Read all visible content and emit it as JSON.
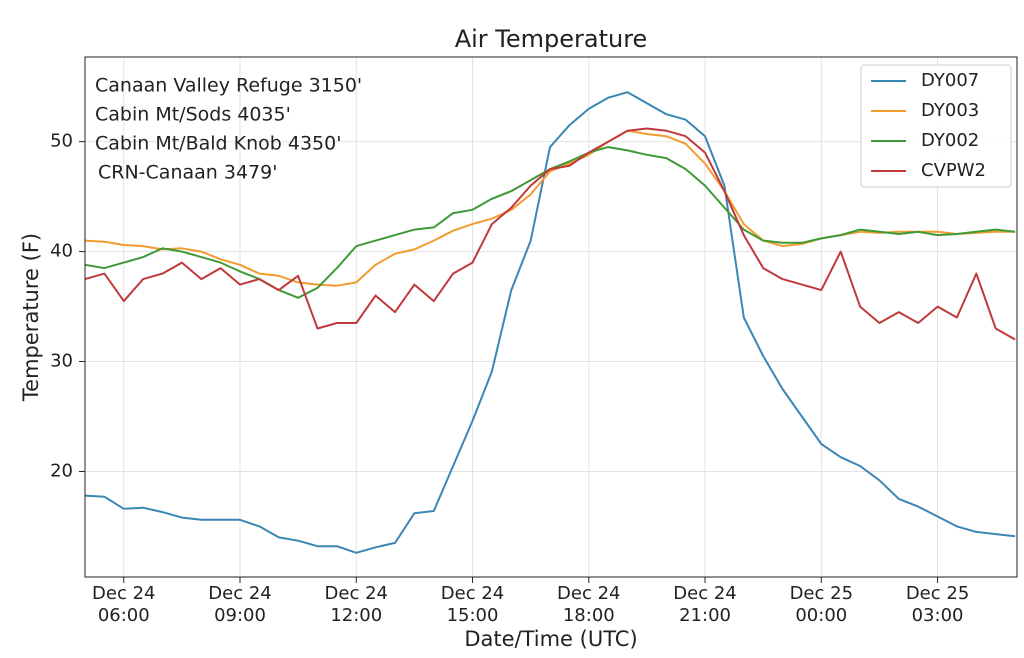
{
  "chart_data": {
    "type": "line",
    "title": "Air Temperature",
    "xlabel": "Date/Time (UTC)",
    "ylabel": "Temperature (F)",
    "annotations": [
      {
        "text": "Canaan Valley Refuge 3150'",
        "color": "#1f88d8"
      },
      {
        "text": "Cabin Mt/Sods 4035'",
        "color": "#f0a030"
      },
      {
        "text": "Cabin Mt/Bald Knob 4350'",
        "color": "#3a8f2e"
      },
      {
        "text": "CRN-Canaan 3479'",
        "color": "#c0282a"
      }
    ],
    "legend": "upper right",
    "grid": true,
    "xlim": [
      "Dec 24 05:00",
      "Dec 25 05:03"
    ],
    "xticks": [
      {
        "value": "Dec 24 06:00",
        "label": [
          "Dec 24",
          "06:00"
        ]
      },
      {
        "value": "Dec 24 09:00",
        "label": [
          "Dec 24",
          "09:00"
        ]
      },
      {
        "value": "Dec 24 12:00",
        "label": [
          "Dec 24",
          "12:00"
        ]
      },
      {
        "value": "Dec 24 15:00",
        "label": [
          "Dec 24",
          "15:00"
        ]
      },
      {
        "value": "Dec 24 18:00",
        "label": [
          "Dec 24",
          "18:00"
        ]
      },
      {
        "value": "Dec 24 21:00",
        "label": [
          "Dec 24",
          "21:00"
        ]
      },
      {
        "value": "Dec 25 00:00",
        "label": [
          "Dec 25",
          "00:00"
        ]
      },
      {
        "value": "Dec 25 03:00",
        "label": [
          "Dec 25",
          "03:00"
        ]
      }
    ],
    "ylim": [
      10.4,
      57.7
    ],
    "yticks": [
      20,
      30,
      40,
      50
    ],
    "x": [
      "Dec 24 05:00",
      "Dec 24 05:30",
      "Dec 24 06:00",
      "Dec 24 06:30",
      "Dec 24 07:00",
      "Dec 24 07:30",
      "Dec 24 08:00",
      "Dec 24 08:30",
      "Dec 24 09:00",
      "Dec 24 09:30",
      "Dec 24 10:00",
      "Dec 24 10:30",
      "Dec 24 11:00",
      "Dec 24 11:30",
      "Dec 24 12:00",
      "Dec 24 12:30",
      "Dec 24 13:00",
      "Dec 24 13:30",
      "Dec 24 14:00",
      "Dec 24 14:30",
      "Dec 24 15:00",
      "Dec 24 15:30",
      "Dec 24 16:00",
      "Dec 24 16:30",
      "Dec 24 17:00",
      "Dec 24 17:30",
      "Dec 24 18:00",
      "Dec 24 18:30",
      "Dec 24 19:00",
      "Dec 24 19:30",
      "Dec 24 20:00",
      "Dec 24 20:30",
      "Dec 24 21:00",
      "Dec 24 21:30",
      "Dec 24 22:00",
      "Dec 24 22:30",
      "Dec 24 23:00",
      "Dec 24 23:30",
      "Dec 25 00:00",
      "Dec 25 00:30",
      "Dec 25 01:00",
      "Dec 25 01:30",
      "Dec 25 02:00",
      "Dec 25 02:30",
      "Dec 25 03:00",
      "Dec 25 03:30",
      "Dec 25 04:00",
      "Dec 25 04:30",
      "Dec 25 05:00"
    ],
    "series": [
      {
        "name": "DY007",
        "color": "#3a86b4",
        "values": [
          17.8,
          17.7,
          16.6,
          16.7,
          16.3,
          15.8,
          15.6,
          15.6,
          15.6,
          15.0,
          14.0,
          13.7,
          13.2,
          13.2,
          12.6,
          13.1,
          13.5,
          16.2,
          16.4,
          20.5,
          24.6,
          29.1,
          36.5,
          41,
          49.5,
          51.5,
          53,
          54,
          54.5,
          53.5,
          52.5,
          52,
          50.5,
          46,
          34,
          30.5,
          27.5,
          25,
          22.5,
          21.3,
          20.5,
          19.2,
          17.5,
          16.8,
          15.9,
          15.0,
          14.5,
          14.3,
          14.1
        ]
      },
      {
        "name": "DY003",
        "color": "#f29b2f",
        "values": [
          41,
          40.9,
          40.6,
          40.5,
          40.2,
          40.3,
          40,
          39.3,
          38.8,
          38,
          37.8,
          37.2,
          37,
          36.9,
          37.2,
          38.8,
          39.8,
          40.2,
          41,
          41.9,
          42.5,
          43,
          43.8,
          45.2,
          47.3,
          48,
          48.8,
          50,
          51,
          50.7,
          50.5,
          49.8,
          48,
          45.5,
          42.5,
          41,
          40.5,
          40.7,
          41.2,
          41.5,
          41.8,
          41.7,
          41.8,
          41.8,
          41.8,
          41.6,
          41.7,
          41.8,
          41.8
        ]
      },
      {
        "name": "DY002",
        "color": "#3d9a35",
        "values": [
          38.8,
          38.5,
          39,
          39.5,
          40.3,
          40,
          39.5,
          39,
          38.2,
          37.5,
          36.5,
          35.8,
          36.7,
          38.5,
          40.5,
          41,
          41.5,
          42,
          42.2,
          43.5,
          43.8,
          44.8,
          45.5,
          46.5,
          47.5,
          48.2,
          49,
          49.5,
          49.2,
          48.8,
          48.5,
          47.5,
          46,
          44,
          42,
          41,
          40.8,
          40.8,
          41.2,
          41.5,
          42,
          41.8,
          41.6,
          41.8,
          41.5,
          41.6,
          41.8,
          42,
          41.8
        ]
      },
      {
        "name": "CVPW2",
        "color": "#c0393b",
        "values": [
          37.5,
          38,
          35.5,
          37.5,
          38,
          39,
          37.5,
          38.5,
          37,
          37.5,
          36.5,
          37.8,
          33,
          33.5,
          33.5,
          36,
          34.5,
          37,
          35.5,
          38,
          39,
          42.5,
          44,
          46,
          47.5,
          47.8,
          49,
          50,
          51,
          51.2,
          51,
          50.5,
          49,
          45.5,
          41.5,
          38.5,
          37.5,
          37,
          36.5,
          40,
          35,
          33.5,
          34.5,
          33.5,
          35,
          34,
          38,
          33,
          32
        ]
      }
    ]
  }
}
